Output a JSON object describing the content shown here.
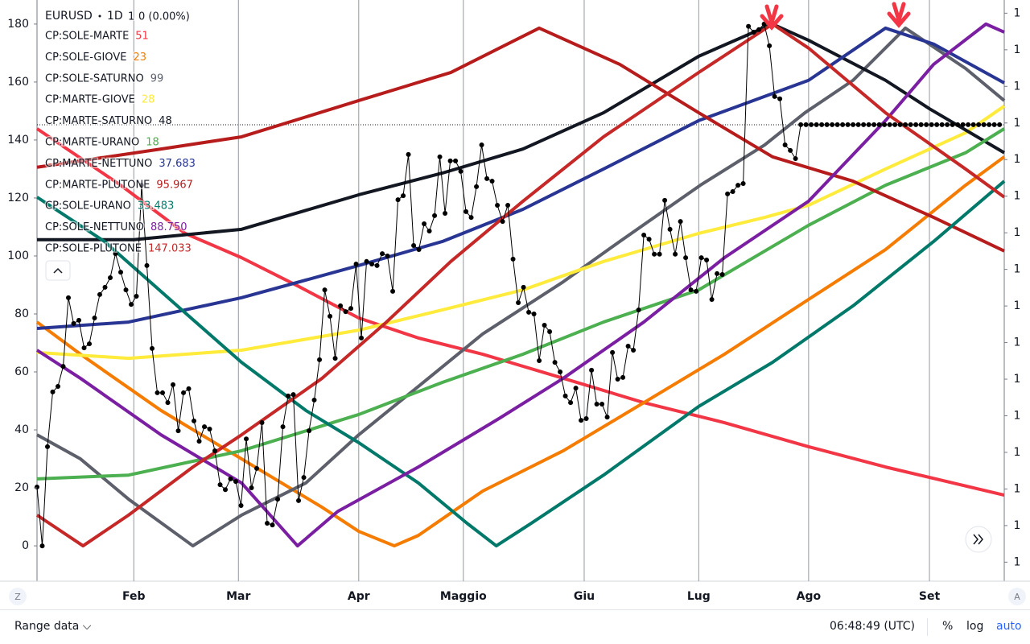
{
  "chart_data": {
    "type": "line",
    "interval": "1D",
    "last": "1",
    "change": "0 (0.00%)",
    "xlim": [
      0,
      184.9
    ],
    "xticks": [
      {
        "value": 18.5,
        "label": "Feb"
      },
      {
        "value": 38.5,
        "label": "Mar"
      },
      {
        "value": 61.5,
        "label": "Apr"
      },
      {
        "value": 81.5,
        "label": "Maggio"
      },
      {
        "value": 104.6,
        "label": "Giu"
      },
      {
        "value": 126.5,
        "label": "Lug"
      },
      {
        "value": 147.5,
        "label": "Ago"
      },
      {
        "value": 170.6,
        "label": "Set"
      }
    ],
    "ylim": [
      -12.2,
      188.3
    ],
    "yticks": [
      0,
      20,
      40,
      60,
      80,
      100,
      120,
      140,
      160,
      180
    ],
    "y2lim": [
      1.1574,
      1.2368
    ],
    "y2ticks": [
      {
        "value": 1.16,
        "label": "1"
      },
      {
        "value": 1.165,
        "label": "1"
      },
      {
        "value": 1.17,
        "label": "1"
      },
      {
        "value": 1.175,
        "label": "1"
      },
      {
        "value": 1.18,
        "label": "1"
      },
      {
        "value": 1.185,
        "label": "1"
      },
      {
        "value": 1.19,
        "label": "1"
      },
      {
        "value": 1.195,
        "label": "1"
      },
      {
        "value": 1.2,
        "label": "1"
      },
      {
        "value": 1.205,
        "label": "1"
      },
      {
        "value": 1.21,
        "label": "1"
      },
      {
        "value": 1.215,
        "label": "1"
      },
      {
        "value": 1.22,
        "label": "1"
      },
      {
        "value": 1.225,
        "label": "1"
      },
      {
        "value": 1.23,
        "label": "1"
      },
      {
        "value": 1.235,
        "label": "1"
      }
    ],
    "grid": "x",
    "series": [
      {
        "name": "EURUSD",
        "color": "#000000",
        "markers": true,
        "x": [
          0,
          1,
          2,
          3,
          4,
          5,
          6,
          7,
          8,
          9,
          10,
          11,
          12,
          13,
          14,
          15,
          16,
          17,
          18,
          19,
          20,
          21,
          22,
          23,
          24,
          25,
          26,
          27,
          28,
          29,
          30,
          31,
          32,
          33,
          34,
          35,
          36,
          37,
          38,
          39,
          40,
          41,
          42,
          43,
          44,
          45,
          46,
          47,
          48,
          49,
          50,
          51,
          52,
          53,
          54,
          55,
          56,
          57,
          58,
          59,
          60,
          61,
          62,
          63,
          64,
          65,
          66,
          67,
          68,
          69,
          70,
          71,
          72,
          73,
          74,
          75,
          76,
          77,
          78,
          79,
          80,
          81,
          82,
          83,
          84,
          85,
          86,
          87,
          88,
          89,
          90,
          91,
          92,
          93,
          94,
          95,
          96,
          97,
          98,
          99,
          100,
          101,
          102,
          103,
          104,
          105,
          106,
          107,
          108,
          109,
          110,
          111,
          112,
          113,
          114,
          115,
          116,
          117,
          118,
          119,
          120,
          121,
          122,
          123,
          124,
          125,
          126,
          127,
          128,
          129,
          130,
          131,
          132,
          133,
          134,
          135,
          136,
          137,
          138,
          139,
          140,
          141,
          142,
          143,
          144,
          145,
          146,
          147,
          148,
          149,
          150,
          151,
          152,
          153,
          154,
          155,
          156,
          157,
          158,
          159,
          160,
          161,
          162,
          163,
          164,
          165,
          166,
          167,
          168,
          169,
          170,
          171,
          172,
          173,
          174,
          175,
          176,
          177,
          178,
          179,
          180,
          181,
          182,
          183,
          184
        ],
        "values": [
          20.3,
          0,
          34.2,
          53.1,
          55,
          61.9,
          85.6,
          76.7,
          77.8,
          68.3,
          69.7,
          78.6,
          86.7,
          89.2,
          92.5,
          100.8,
          94.4,
          88.3,
          83.3,
          86.1,
          124.4,
          96.7,
          68.1,
          52.8,
          52.8,
          49.4,
          55.6,
          39.7,
          52.8,
          54.2,
          43.1,
          36.1,
          41.1,
          40.3,
          32.8,
          21.1,
          19.4,
          23.1,
          22.2,
          13.9,
          36.9,
          20,
          26.7,
          42.5,
          7.8,
          7.2,
          16.1,
          41.1,
          51.7,
          52.2,
          15.6,
          23.6,
          39.7,
          50.3,
          64.2,
          88.3,
          79.2,
          64.7,
          82.8,
          80.8,
          81.9,
          97.2,
          71.7,
          98.1,
          97.2,
          96.7,
          100.8,
          100,
          87.8,
          119.4,
          120.8,
          135,
          103.6,
          102.2,
          111.1,
          108.6,
          113.9,
          134.2,
          114.7,
          132.8,
          132.8,
          129.2,
          115.3,
          113.3,
          123.9,
          138.3,
          126.7,
          125.8,
          117.5,
          111.9,
          117.5,
          98.9,
          83.9,
          89.2,
          80.6,
          80,
          63.9,
          76.1,
          73.9,
          63.3,
          60,
          51.7,
          49.4,
          54.4,
          43.3,
          43.9,
          60.6,
          48.9,
          48.9,
          44.4,
          66.7,
          57.5,
          58.1,
          68.9,
          67.5,
          81.4,
          107.2,
          105.8,
          100.6,
          100.6,
          119.2,
          109.2,
          100.6,
          111.9,
          99.4,
          88.3,
          87.8,
          99.4,
          98.6,
          85,
          93.9,
          93.6,
          121.4,
          122.2,
          124.4,
          125,
          179.2,
          177.2,
          178.1,
          180,
          172.5,
          155,
          154.2,
          138.3,
          136.4,
          133.6,
          145.3,
          145.3,
          145.3,
          145.3,
          145.3,
          145.3,
          145.3,
          145.3,
          145.3,
          145.3,
          145.3,
          145.3,
          145.3,
          145.3,
          145.3,
          145.3,
          145.3,
          145.3,
          145.3,
          145.3,
          145.3,
          145.3,
          145.3,
          145.3,
          145.3,
          145.3,
          145.3,
          145.3,
          145.3,
          145.3,
          145.3,
          145.3,
          145.3,
          145.3,
          145.3,
          145.3,
          145.3,
          145.3,
          145.3
        ]
      },
      {
        "name": "CP:SOLE-MARTE",
        "legend_value": "51",
        "color": "#f23645",
        "x": [
          0,
          16,
          28.3,
          39.1,
          49.8,
          61.5,
          72.9,
          85.2,
          100.6,
          116,
          131.4,
          147.5,
          162.2,
          184.9
        ],
        "values": [
          143.9,
          124.4,
          107.8,
          99.4,
          89.7,
          78.6,
          71.7,
          66.1,
          57.8,
          49.4,
          42.5,
          34.2,
          27.2,
          17.5
        ]
      },
      {
        "name": "CP:SOLE-GIOVE",
        "legend_value": "23",
        "color": "#f57c00",
        "x": [
          0,
          8.3,
          23.7,
          39.1,
          54.5,
          61.5,
          68.3,
          72.9,
          85.2,
          100.6,
          116,
          131.4,
          146.8,
          162.2,
          177.5,
          184.9
        ],
        "values": [
          77.2,
          66.1,
          46.7,
          30,
          13.3,
          5,
          0,
          3.6,
          18.9,
          32.8,
          49.4,
          66.1,
          84.2,
          102.2,
          124.4,
          134.2
        ]
      },
      {
        "name": "CP:SOLE-SATURNO",
        "legend_value": "99",
        "color": "#5d606b",
        "x": [
          0,
          8.3,
          17.5,
          29.8,
          39.1,
          51.4,
          61.5,
          72.9,
          85.2,
          100.6,
          111.4,
          126.8,
          139.1,
          146.8,
          156,
          166,
          177.5,
          184.9
        ],
        "values": [
          38.3,
          30,
          16.1,
          0,
          10.6,
          21.7,
          38.3,
          55,
          73.1,
          91.1,
          105,
          124.4,
          138.3,
          149.4,
          160.6,
          178.6,
          164.7,
          153.6
        ]
      },
      {
        "name": "CP:MARTE-GIOVE",
        "legend_value": "28",
        "color": "#ffeb3b",
        "x": [
          0,
          17.5,
          39.1,
          61.5,
          77.5,
          92.9,
          108.3,
          126.5,
          139.1,
          147.5,
          162.2,
          177.5,
          184.9
        ],
        "values": [
          66.7,
          64.7,
          67.5,
          74.4,
          81.4,
          88.3,
          98.1,
          107.8,
          113.3,
          117.5,
          130,
          142.5,
          151.7
        ]
      },
      {
        "name": "CP:MARTE-SATURNO",
        "legend_value": "48",
        "color": "#131722",
        "x": [
          0,
          18.5,
          39.1,
          61.5,
          77.5,
          92.9,
          108.3,
          126.5,
          140.6,
          147.5,
          162.2,
          170.6,
          184.9
        ],
        "values": [
          105.6,
          105.6,
          109.2,
          121.1,
          128.6,
          136.9,
          149.4,
          168.9,
          180,
          174.4,
          160.6,
          150.8,
          135.6
        ]
      },
      {
        "name": "CP:MARTE-URANO",
        "legend_value": "18",
        "color": "#4caf50",
        "x": [
          0,
          17.5,
          39.1,
          61.5,
          77.5,
          92.9,
          108.3,
          126.5,
          147.5,
          162.2,
          177.5,
          184.9
        ],
        "values": [
          23.1,
          24.4,
          32.8,
          45.3,
          56.4,
          66.1,
          77.2,
          88.3,
          110.6,
          124.4,
          135.6,
          143.9
        ]
      },
      {
        "name": "CP:MARTE-NETTUNO",
        "legend_value": "37.683",
        "color": "#283593",
        "x": [
          0,
          17.5,
          39.1,
          61.5,
          77.5,
          92.9,
          108.3,
          126.5,
          147.5,
          162.2,
          171.4,
          184.9
        ],
        "values": [
          75,
          77.2,
          85.6,
          96.7,
          105,
          116.1,
          130,
          146.7,
          160.6,
          178.6,
          173.1,
          159.7
        ]
      },
      {
        "name": "CP:MARTE-PLUTONE",
        "legend_value": "95.967",
        "color": "#b71c1c",
        "x": [
          0,
          23.7,
          39.1,
          61.5,
          79.1,
          96,
          111.4,
          126.5,
          140.6,
          156,
          171.4,
          184.9
        ],
        "values": [
          130.6,
          136.9,
          141.1,
          153.6,
          163.3,
          178.6,
          166.1,
          149.4,
          134.2,
          125.8,
          113.3,
          101.7
        ]
      },
      {
        "name": "CP:SOLE-URANO",
        "legend_value": "33.483",
        "color": "#00796b",
        "x": [
          0,
          12.9,
          26.8,
          39.1,
          51.4,
          61.5,
          72.9,
          82.2,
          87.8,
          94.5,
          108.3,
          126.5,
          140.6,
          156,
          171.4,
          184.9
        ],
        "values": [
          120.3,
          105,
          82.8,
          63.3,
          46.7,
          35.6,
          21.7,
          7.8,
          0,
          7.8,
          24.4,
          48.1,
          63.3,
          82.8,
          105,
          125.8
        ]
      },
      {
        "name": "CP:SOLE-NETTUNO",
        "legend_value": "88.750",
        "color": "#7b1fa2",
        "x": [
          0,
          8.3,
          23.7,
          39.1,
          49.8,
          57.5,
          72.9,
          88.3,
          100.6,
          116,
          131.4,
          147.5,
          162.2,
          171.4,
          181.4,
          184.9
        ],
        "values": [
          67.5,
          57.8,
          38.3,
          21.7,
          0,
          11.9,
          27.2,
          43.9,
          57.8,
          77.2,
          99.4,
          118.9,
          146.7,
          166.1,
          180,
          177.2
        ]
      },
      {
        "name": "CP:SOLE-PLUTONE",
        "legend_value": "147.033",
        "color": "#c62828",
        "x": [
          0,
          8.8,
          17.5,
          29.8,
          39.1,
          54.5,
          66.8,
          79.1,
          92.9,
          108.3,
          126.5,
          140.6,
          147.5,
          162.2,
          177.5,
          184.9
        ],
        "values": [
          10.6,
          0,
          10.6,
          27.2,
          38.3,
          57.8,
          77.2,
          98.1,
          118.9,
          141.1,
          163.3,
          180,
          171.7,
          149.4,
          130,
          120.3
        ]
      }
    ]
  },
  "toolbar": {
    "range": "Range data",
    "clock": "06:48:49 (UTC)",
    "percent": "%",
    "log": "log",
    "auto": "auto",
    "left_corner": "Z",
    "right_corner": "A"
  }
}
